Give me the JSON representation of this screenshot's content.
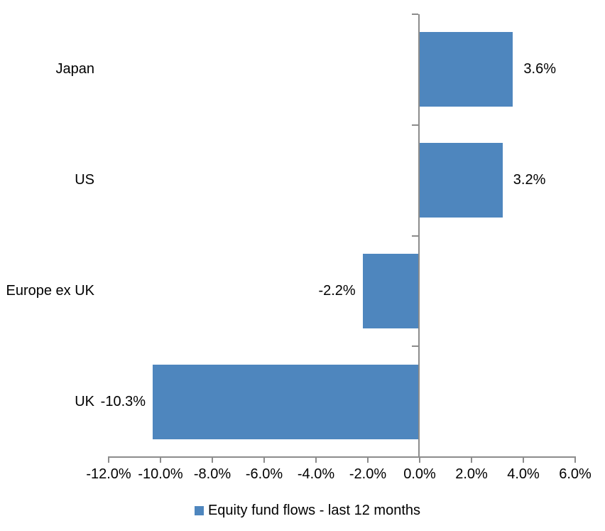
{
  "chart_data": {
    "type": "bar",
    "orientation": "horizontal",
    "title": "",
    "xlabel": "",
    "ylabel": "",
    "categories": [
      "Japan",
      "US",
      "Europe ex UK",
      "UK"
    ],
    "series": [
      {
        "name": "Equity fund flows - last 12 months",
        "values": [
          3.6,
          3.2,
          -2.2,
          -10.3
        ],
        "value_labels": [
          "3.6%",
          "3.2%",
          "-2.2%",
          "-10.3%"
        ]
      }
    ],
    "xlim": [
      -12,
      6
    ],
    "x_tick_step": 2,
    "x_tick_labels": [
      "-12.0%",
      "-10.0%",
      "-8.0%",
      "-6.0%",
      "-4.0%",
      "-2.0%",
      "0.0%",
      "2.0%",
      "4.0%",
      "6.0%"
    ],
    "grid": false,
    "legend_position": "bottom",
    "colors": {
      "bar": "#4E86BE",
      "axis": "#8C8C8C",
      "text": "#000000",
      "background": "#FFFFFF"
    }
  }
}
